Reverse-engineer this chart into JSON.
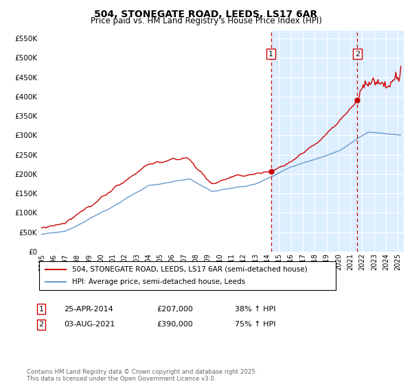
{
  "title": "504, STONEGATE ROAD, LEEDS, LS17 6AR",
  "subtitle": "Price paid vs. HM Land Registry's House Price Index (HPI)",
  "ylabel_ticks": [
    "£0",
    "£50K",
    "£100K",
    "£150K",
    "£200K",
    "£250K",
    "£300K",
    "£350K",
    "£400K",
    "£450K",
    "£500K",
    "£550K"
  ],
  "ylim": [
    0,
    570000
  ],
  "xlim_start": 1994.8,
  "xlim_end": 2025.5,
  "marker1_x": 2014.32,
  "marker1_y": 207000,
  "marker1_label": "1",
  "marker2_x": 2021.58,
  "marker2_y": 390000,
  "marker2_label": "2",
  "red_line_color": "#cc0000",
  "blue_line_color": "#6699cc",
  "background_color": "#ddeeff",
  "shade_color": "#ddeeff",
  "legend1": "504, STONEGATE ROAD, LEEDS, LS17 6AR (semi-detached house)",
  "legend2": "HPI: Average price, semi-detached house, Leeds",
  "note1_box": "1",
  "note1_date": "25-APR-2014",
  "note1_price": "£207,000",
  "note1_hpi": "38% ↑ HPI",
  "note2_box": "2",
  "note2_date": "03-AUG-2021",
  "note2_price": "£390,000",
  "note2_hpi": "75% ↑ HPI",
  "footer": "Contains HM Land Registry data © Crown copyright and database right 2025.\nThis data is licensed under the Open Government Licence v3.0."
}
